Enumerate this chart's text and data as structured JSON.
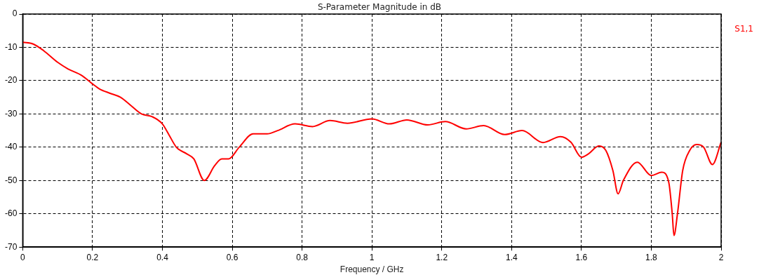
{
  "chart_data": {
    "type": "line",
    "title": "S-Parameter Magnitude in dB",
    "xlabel": "Frequency / GHz",
    "legend": "top right",
    "grid": true,
    "marker": "none",
    "line_style": "solid",
    "xlim": [
      0,
      2
    ],
    "xticks": [
      0,
      0.2,
      0.4,
      0.6,
      0.8,
      1,
      1.2,
      1.4,
      1.6,
      1.8,
      2
    ],
    "ylim": [
      -70,
      0
    ],
    "yticks": [
      -70,
      -60,
      -50,
      -40,
      -30,
      -20,
      -10,
      0
    ],
    "series": [
      {
        "name": "S1,1",
        "color": "#ff0000",
        "x": [
          0,
          0.03,
          0.06,
          0.1,
          0.13,
          0.17,
          0.2,
          0.22,
          0.25,
          0.28,
          0.31,
          0.34,
          0.37,
          0.4,
          0.42,
          0.44,
          0.47,
          0.49,
          0.52,
          0.55,
          0.57,
          0.59,
          0.62,
          0.66,
          0.7,
          0.73,
          0.78,
          0.83,
          0.88,
          0.93,
          1,
          1.05,
          1.1,
          1.16,
          1.21,
          1.27,
          1.32,
          1.38,
          1.43,
          1.49,
          1.54,
          1.57,
          1.6,
          1.62,
          1.65,
          1.67,
          1.69,
          1.705,
          1.72,
          1.76,
          1.8,
          1.83,
          1.85,
          1.86,
          1.865,
          1.875,
          1.89,
          1.91,
          1.93,
          1.95,
          1.975,
          2
        ],
        "values": [
          -8.5,
          -9,
          -11,
          -14.5,
          -16.5,
          -18.5,
          -21,
          -22.5,
          -23.8,
          -25,
          -27.5,
          -30,
          -30.8,
          -33,
          -36.5,
          -40,
          -42,
          -43.5,
          -50,
          -45.5,
          -43.5,
          -43.5,
          -40,
          -36,
          -36,
          -35,
          -33,
          -33.8,
          -32,
          -32.8,
          -31.5,
          -33,
          -31.8,
          -33.3,
          -32.3,
          -34.5,
          -33.5,
          -36.2,
          -35,
          -38.6,
          -36.8,
          -38.5,
          -43,
          -42,
          -39.6,
          -41,
          -47,
          -54,
          -50,
          -44.5,
          -48.5,
          -47.5,
          -50.5,
          -60,
          -66.5,
          -60,
          -47,
          -41,
          -39.2,
          -40,
          -45.2,
          -38.5
        ]
      }
    ]
  }
}
